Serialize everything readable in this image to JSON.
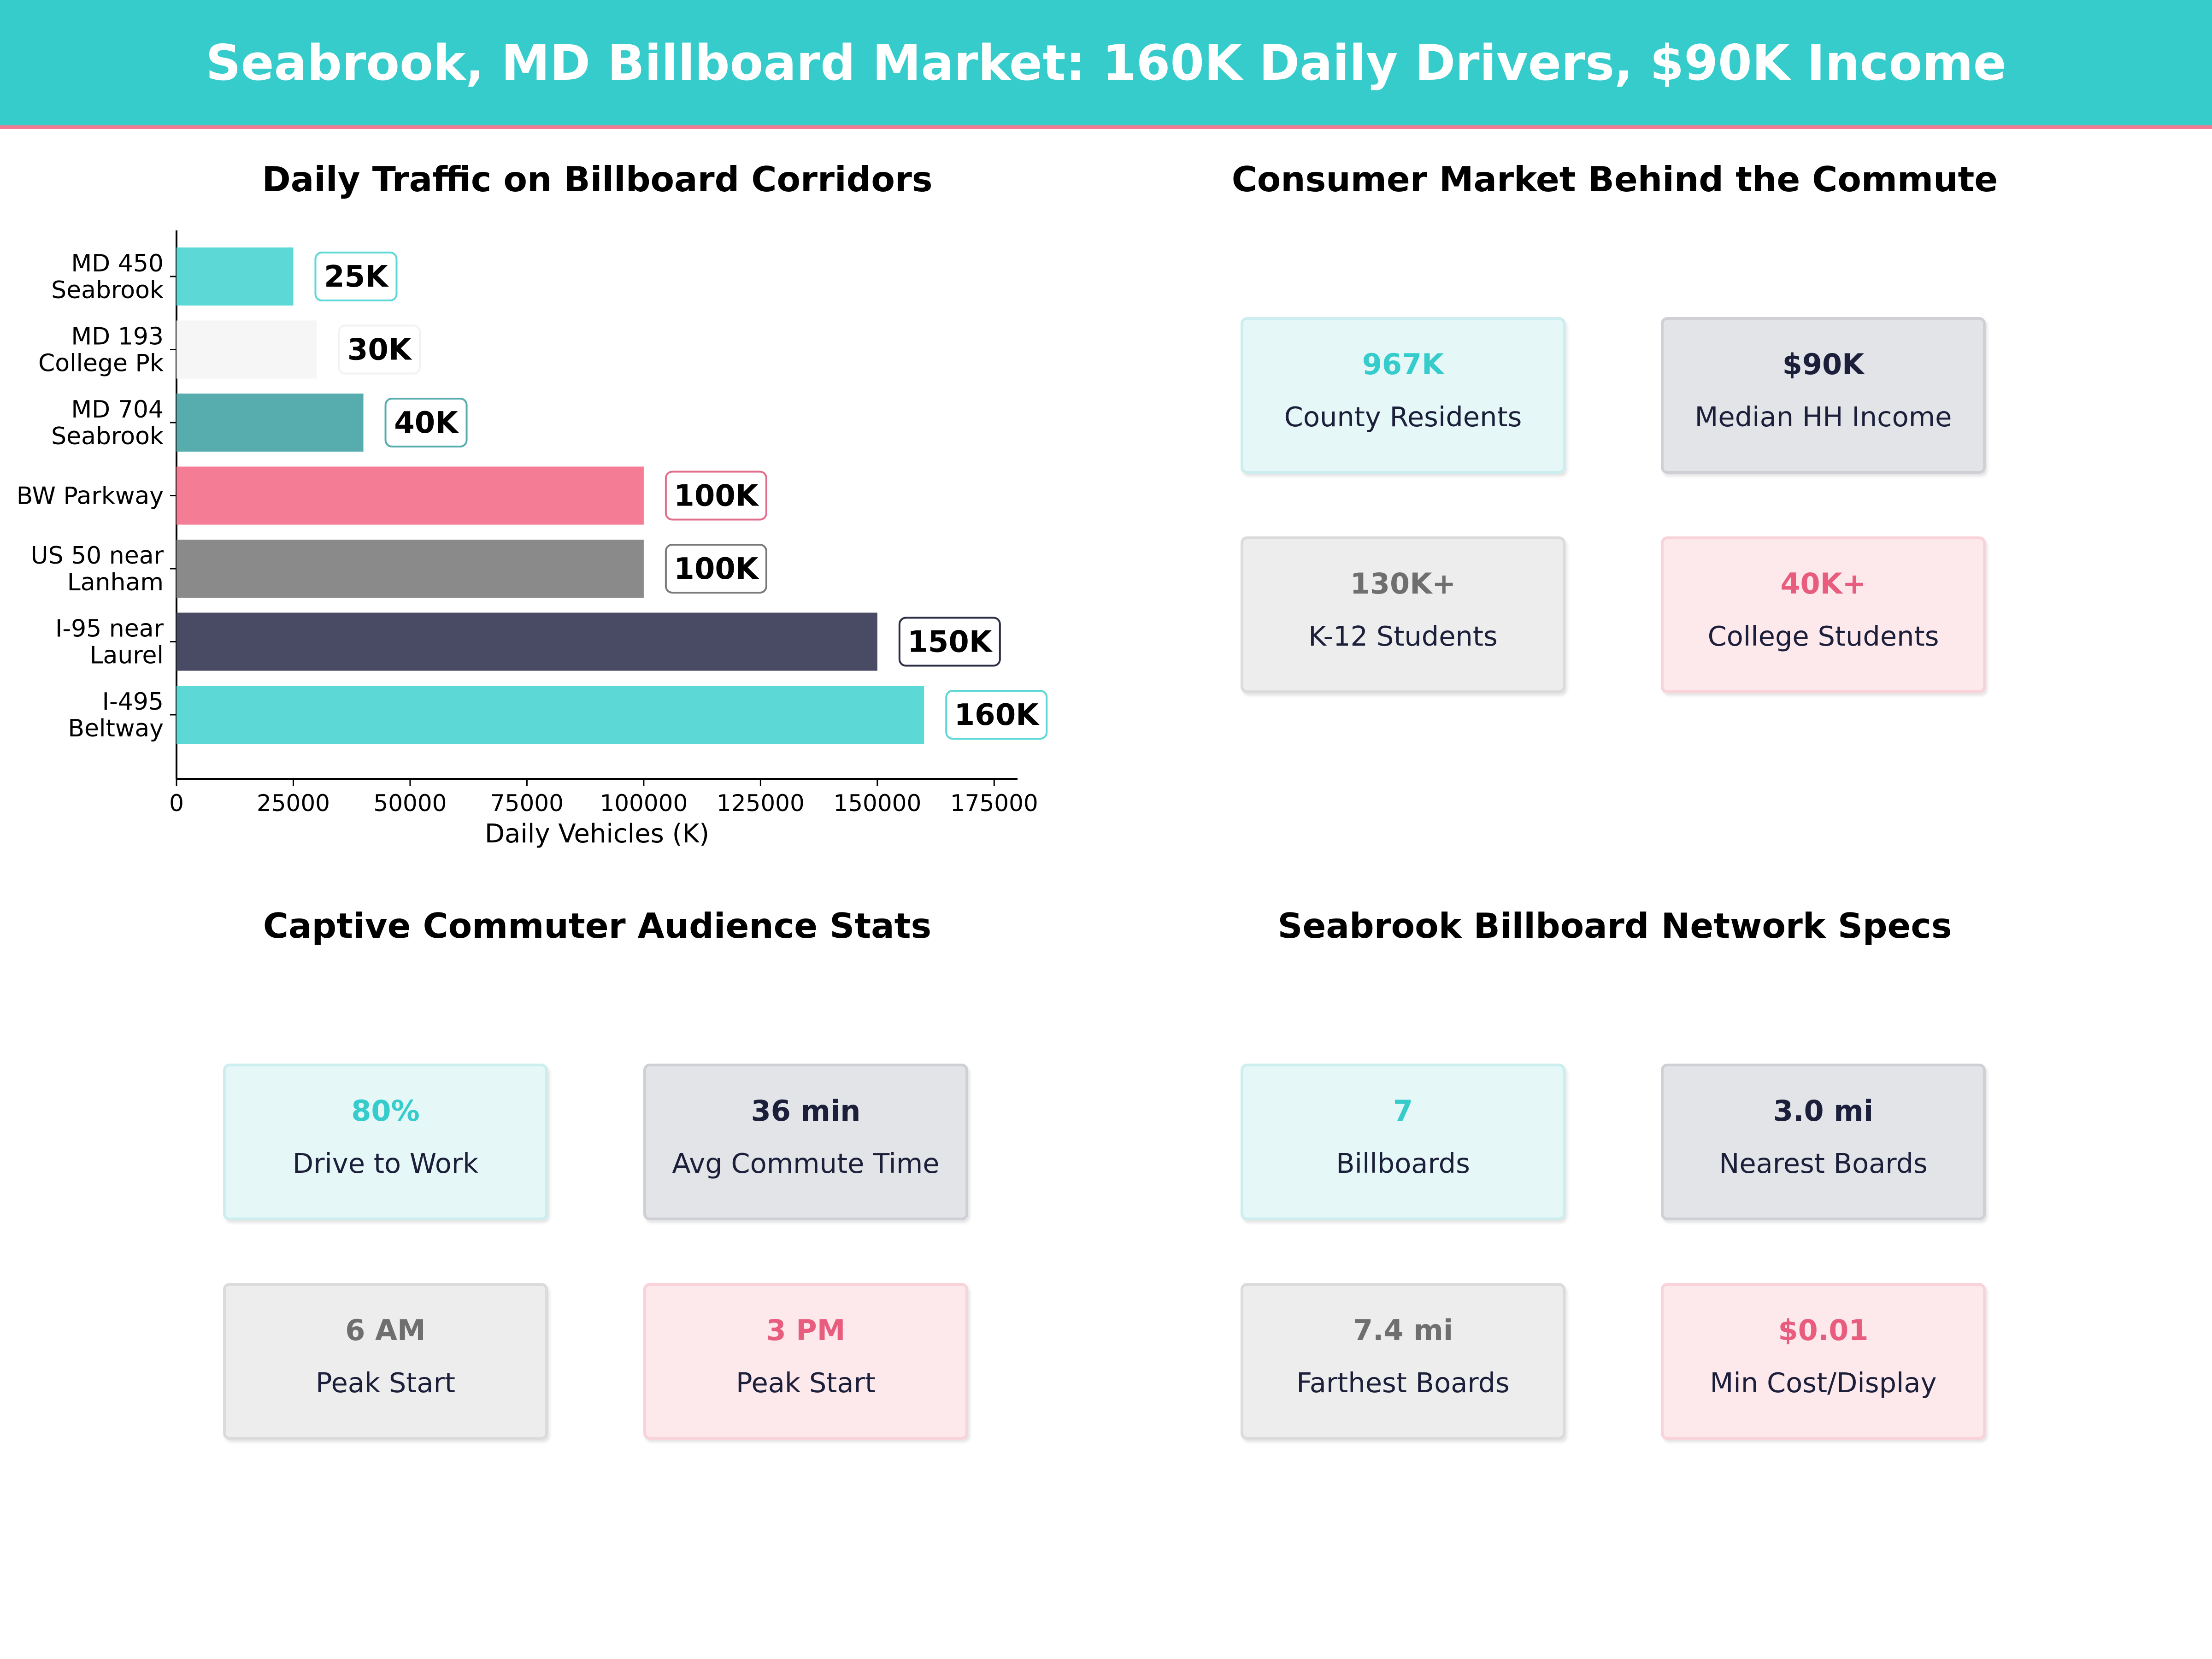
{
  "header": {
    "title": "Seabrook, MD Billboard Market: 160K Daily Drivers, $90K Income"
  },
  "traffic": {
    "title": "Daily Traffic on Billboard Corridors"
  },
  "chart_data": {
    "type": "bar",
    "orientation": "horizontal",
    "title": "Daily Traffic on Billboard Corridors",
    "xlabel": "Daily Vehicles (K)",
    "ylabel": "",
    "xlim": [
      0,
      180000
    ],
    "xticks": [
      0,
      25000,
      50000,
      75000,
      100000,
      125000,
      150000,
      175000
    ],
    "grid": false,
    "categories": [
      [
        "MD 450",
        "Seabrook"
      ],
      [
        "MD 193",
        "College Pk"
      ],
      [
        "MD 704",
        "Seabrook"
      ],
      [
        "BW Parkway"
      ],
      [
        "US 50 near",
        "Lanham"
      ],
      [
        "I-95 near",
        "Laurel"
      ],
      [
        "I-495",
        "Beltway"
      ]
    ],
    "values": [
      25000,
      30000,
      40000,
      100000,
      100000,
      150000,
      160000
    ],
    "data_labels": [
      "25K",
      "30K",
      "40K",
      "100K",
      "100K",
      "150K",
      "160K"
    ],
    "colors": [
      "#5cd8d6",
      "#f6f6f6",
      "#57adad",
      "#f47c94",
      "#8a8a8a",
      "#484b63",
      "#5cd8d6"
    ],
    "label_borders": [
      "#5cd8d6",
      "#f2f2f2",
      "#57adad",
      "#e26d8a",
      "#7a7a7a",
      "#2a2d45",
      "#5cd8d6"
    ]
  },
  "consumer": {
    "title": "Consumer Market Behind the Commute",
    "cards": [
      {
        "value": "967K",
        "label": "County Residents"
      },
      {
        "value": "$90K",
        "label": "Median HH Income"
      },
      {
        "value": "130K+",
        "label": "K-12 Students"
      },
      {
        "value": "40K+",
        "label": "College Students"
      }
    ]
  },
  "audience": {
    "title": "Captive Commuter Audience Stats",
    "cards": [
      {
        "value": "80%",
        "label": "Drive to Work"
      },
      {
        "value": "36 min",
        "label": "Avg Commute Time"
      },
      {
        "value": "6 AM",
        "label": "Peak Start"
      },
      {
        "value": "3 PM",
        "label": "Peak Start"
      }
    ]
  },
  "network": {
    "title": "Seabrook Billboard Network Specs",
    "cards": [
      {
        "value": "7",
        "label": "Billboards"
      },
      {
        "value": "3.0 mi",
        "label": "Nearest Boards"
      },
      {
        "value": "7.4 mi",
        "label": "Farthest Boards"
      },
      {
        "value": "$0.01",
        "label": "Min Cost/Display"
      }
    ]
  },
  "palette": {
    "teal": "#36cccc",
    "navy": "#1b1f3a",
    "gray": "#6f6f6f",
    "pink": "#e85d7e",
    "accent_line": "#f07c94"
  }
}
